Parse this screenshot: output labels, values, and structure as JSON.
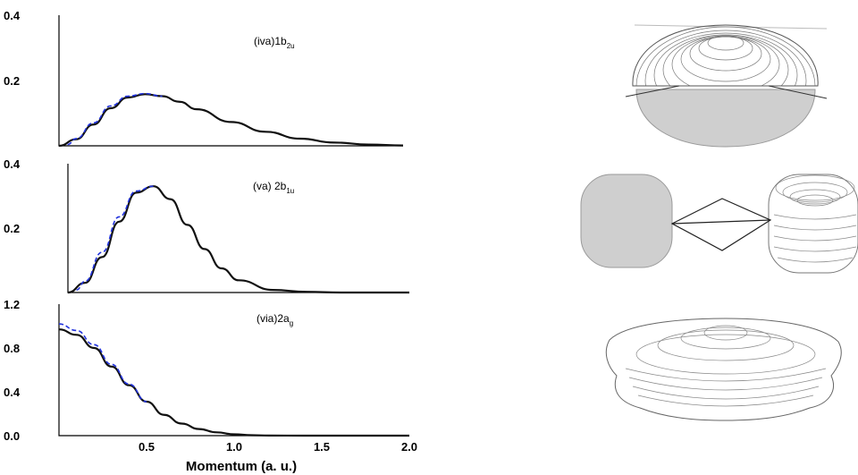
{
  "figure": {
    "xlabel": "Momentum (a. u.)"
  },
  "chart_data": [
    {
      "type": "line",
      "panel_label": {
        "main": "(iva)1b",
        "sub": "2u"
      },
      "xlim": [
        0,
        2.0
      ],
      "ylim": [
        0,
        0.4
      ],
      "yticks": [
        "0.4",
        "0.2"
      ],
      "ytick_values": [
        0.4,
        0.2
      ],
      "series": [
        {
          "style": "solid",
          "color": "#111111",
          "x": [
            0,
            0.1,
            0.2,
            0.3,
            0.4,
            0.5,
            0.6,
            0.7,
            0.8,
            1.0,
            1.2,
            1.4,
            1.6,
            1.8,
            2.0
          ],
          "y": [
            0,
            0.02,
            0.065,
            0.115,
            0.148,
            0.158,
            0.152,
            0.135,
            0.112,
            0.073,
            0.043,
            0.022,
            0.01,
            0.004,
            0.001
          ]
        },
        {
          "style": "dashed",
          "color": "#2233dd",
          "x": [
            0.05,
            0.1,
            0.2,
            0.3,
            0.4,
            0.5,
            0.6
          ],
          "y": [
            0.004,
            0.022,
            0.07,
            0.122,
            0.152,
            0.16,
            0.152
          ]
        }
      ]
    },
    {
      "type": "line",
      "panel_label": {
        "main": "(va) 2b",
        "sub": "1u"
      },
      "xlim": [
        0,
        2.0
      ],
      "ylim": [
        0,
        0.4
      ],
      "yticks": [
        "0.4",
        "0.2"
      ],
      "ytick_values": [
        0.4,
        0.2
      ],
      "series": [
        {
          "style": "solid",
          "color": "#111111",
          "x": [
            0,
            0.1,
            0.2,
            0.3,
            0.4,
            0.5,
            0.6,
            0.7,
            0.8,
            0.9,
            1.0,
            1.2,
            1.4,
            1.6,
            2.0
          ],
          "y": [
            0,
            0.03,
            0.11,
            0.22,
            0.31,
            0.33,
            0.29,
            0.21,
            0.135,
            0.075,
            0.038,
            0.008,
            0.002,
            0.0,
            0.0
          ]
        },
        {
          "style": "dashed",
          "color": "#2233dd",
          "x": [
            0.05,
            0.1,
            0.2,
            0.3,
            0.4,
            0.5
          ],
          "y": [
            0.008,
            0.035,
            0.125,
            0.235,
            0.315,
            0.33
          ]
        }
      ]
    },
    {
      "type": "line",
      "panel_label": {
        "main": "(via)2a",
        "sub": "g"
      },
      "xlim": [
        0,
        2.0
      ],
      "ylim": [
        0,
        1.2
      ],
      "xticks": [
        "0.5",
        "1.0",
        "1.5",
        "2.0"
      ],
      "xtick_values": [
        0.5,
        1.0,
        1.5,
        2.0
      ],
      "yticks": [
        "1.2",
        "0.8",
        "0.4",
        "0.0"
      ],
      "ytick_values": [
        1.2,
        0.8,
        0.4,
        0.0
      ],
      "series": [
        {
          "style": "solid",
          "color": "#111111",
          "x": [
            0,
            0.1,
            0.2,
            0.3,
            0.4,
            0.5,
            0.6,
            0.7,
            0.8,
            0.9,
            1.0,
            1.1,
            1.2,
            1.4,
            1.6,
            2.0
          ],
          "y": [
            0.97,
            0.92,
            0.8,
            0.63,
            0.46,
            0.31,
            0.19,
            0.11,
            0.06,
            0.03,
            0.012,
            0.004,
            0.001,
            0.0,
            0.0,
            0.0
          ]
        },
        {
          "style": "dashed",
          "color": "#2233dd",
          "x": [
            0,
            0.1,
            0.2,
            0.3,
            0.4,
            0.5
          ],
          "y": [
            1.02,
            0.96,
            0.83,
            0.65,
            0.47,
            0.31
          ]
        }
      ]
    }
  ]
}
